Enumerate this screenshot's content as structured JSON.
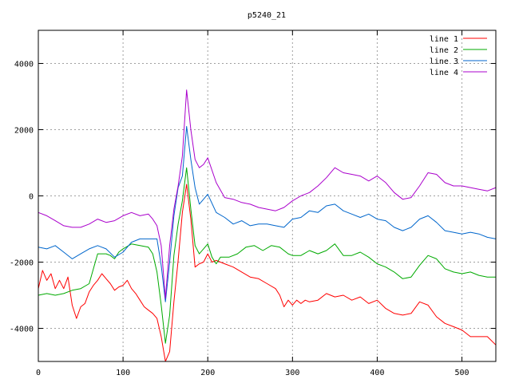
{
  "chart_data": {
    "type": "line",
    "title": "p5240_21",
    "xlabel": "",
    "ylabel": "",
    "xlim": [
      0,
      540
    ],
    "ylim": [
      -5000,
      5000
    ],
    "xticks": [
      0,
      100,
      200,
      300,
      400,
      500
    ],
    "yticks": [
      -4000,
      -2000,
      0,
      2000,
      4000
    ],
    "grid": true,
    "legend_position": "top-right",
    "series": [
      {
        "name": "line 1",
        "color": "#ff0000",
        "points": [
          [
            0,
            -2800
          ],
          [
            5,
            -2250
          ],
          [
            10,
            -2550
          ],
          [
            15,
            -2350
          ],
          [
            20,
            -2800
          ],
          [
            25,
            -2550
          ],
          [
            30,
            -2800
          ],
          [
            35,
            -2450
          ],
          [
            40,
            -3300
          ],
          [
            45,
            -3700
          ],
          [
            50,
            -3350
          ],
          [
            55,
            -3250
          ],
          [
            60,
            -2900
          ],
          [
            65,
            -2700
          ],
          [
            70,
            -2550
          ],
          [
            75,
            -2350
          ],
          [
            80,
            -2500
          ],
          [
            85,
            -2650
          ],
          [
            90,
            -2850
          ],
          [
            95,
            -2750
          ],
          [
            100,
            -2700
          ],
          [
            105,
            -2550
          ],
          [
            110,
            -2800
          ],
          [
            115,
            -2950
          ],
          [
            120,
            -3150
          ],
          [
            125,
            -3350
          ],
          [
            130,
            -3450
          ],
          [
            135,
            -3550
          ],
          [
            140,
            -3700
          ],
          [
            145,
            -4250
          ],
          [
            150,
            -5000
          ],
          [
            155,
            -4700
          ],
          [
            160,
            -3200
          ],
          [
            165,
            -1950
          ],
          [
            170,
            -500
          ],
          [
            175,
            350
          ],
          [
            180,
            -700
          ],
          [
            185,
            -2150
          ],
          [
            190,
            -2050
          ],
          [
            195,
            -2000
          ],
          [
            200,
            -1750
          ],
          [
            205,
            -2000
          ],
          [
            210,
            -1950
          ],
          [
            215,
            -2000
          ],
          [
            220,
            -2050
          ],
          [
            230,
            -2150
          ],
          [
            240,
            -2300
          ],
          [
            250,
            -2450
          ],
          [
            260,
            -2500
          ],
          [
            270,
            -2650
          ],
          [
            280,
            -2800
          ],
          [
            285,
            -3000
          ],
          [
            290,
            -3350
          ],
          [
            295,
            -3150
          ],
          [
            300,
            -3300
          ],
          [
            305,
            -3150
          ],
          [
            310,
            -3250
          ],
          [
            315,
            -3150
          ],
          [
            320,
            -3200
          ],
          [
            330,
            -3150
          ],
          [
            340,
            -2950
          ],
          [
            350,
            -3050
          ],
          [
            360,
            -3000
          ],
          [
            370,
            -3150
          ],
          [
            380,
            -3050
          ],
          [
            390,
            -3250
          ],
          [
            400,
            -3150
          ],
          [
            410,
            -3400
          ],
          [
            420,
            -3550
          ],
          [
            430,
            -3600
          ],
          [
            440,
            -3550
          ],
          [
            450,
            -3200
          ],
          [
            460,
            -3300
          ],
          [
            470,
            -3650
          ],
          [
            480,
            -3850
          ],
          [
            490,
            -3950
          ],
          [
            500,
            -4050
          ],
          [
            510,
            -4250
          ],
          [
            520,
            -4250
          ],
          [
            530,
            -4250
          ],
          [
            540,
            -4500
          ]
        ]
      },
      {
        "name": "line 2",
        "color": "#00aa00",
        "points": [
          [
            0,
            -3000
          ],
          [
            10,
            -2950
          ],
          [
            20,
            -3000
          ],
          [
            30,
            -2950
          ],
          [
            40,
            -2850
          ],
          [
            50,
            -2800
          ],
          [
            60,
            -2650
          ],
          [
            65,
            -2200
          ],
          [
            70,
            -1750
          ],
          [
            75,
            -1750
          ],
          [
            80,
            -1750
          ],
          [
            85,
            -1800
          ],
          [
            90,
            -1900
          ],
          [
            95,
            -1700
          ],
          [
            100,
            -1600
          ],
          [
            110,
            -1450
          ],
          [
            120,
            -1500
          ],
          [
            130,
            -1550
          ],
          [
            135,
            -1750
          ],
          [
            140,
            -2300
          ],
          [
            145,
            -3300
          ],
          [
            150,
            -4450
          ],
          [
            155,
            -3600
          ],
          [
            160,
            -1800
          ],
          [
            165,
            -850
          ],
          [
            170,
            -150
          ],
          [
            175,
            850
          ],
          [
            180,
            -400
          ],
          [
            185,
            -1500
          ],
          [
            190,
            -1750
          ],
          [
            195,
            -1600
          ],
          [
            200,
            -1450
          ],
          [
            205,
            -1850
          ],
          [
            210,
            -2050
          ],
          [
            215,
            -1850
          ],
          [
            225,
            -1850
          ],
          [
            235,
            -1750
          ],
          [
            245,
            -1550
          ],
          [
            255,
            -1500
          ],
          [
            265,
            -1650
          ],
          [
            275,
            -1500
          ],
          [
            285,
            -1550
          ],
          [
            295,
            -1750
          ],
          [
            300,
            -1800
          ],
          [
            310,
            -1800
          ],
          [
            320,
            -1650
          ],
          [
            330,
            -1750
          ],
          [
            340,
            -1650
          ],
          [
            350,
            -1450
          ],
          [
            360,
            -1800
          ],
          [
            370,
            -1800
          ],
          [
            380,
            -1700
          ],
          [
            390,
            -1850
          ],
          [
            400,
            -2050
          ],
          [
            410,
            -2150
          ],
          [
            420,
            -2300
          ],
          [
            430,
            -2500
          ],
          [
            440,
            -2450
          ],
          [
            450,
            -2100
          ],
          [
            460,
            -1800
          ],
          [
            470,
            -1900
          ],
          [
            480,
            -2200
          ],
          [
            490,
            -2300
          ],
          [
            500,
            -2350
          ],
          [
            510,
            -2300
          ],
          [
            520,
            -2400
          ],
          [
            530,
            -2450
          ],
          [
            540,
            -2450
          ]
        ]
      },
      {
        "name": "line 3",
        "color": "#0066cc",
        "points": [
          [
            0,
            -1550
          ],
          [
            10,
            -1600
          ],
          [
            20,
            -1500
          ],
          [
            30,
            -1700
          ],
          [
            40,
            -1900
          ],
          [
            50,
            -1750
          ],
          [
            60,
            -1600
          ],
          [
            70,
            -1500
          ],
          [
            80,
            -1600
          ],
          [
            90,
            -1850
          ],
          [
            100,
            -1700
          ],
          [
            110,
            -1400
          ],
          [
            120,
            -1300
          ],
          [
            130,
            -1300
          ],
          [
            140,
            -1300
          ],
          [
            145,
            -2100
          ],
          [
            150,
            -3200
          ],
          [
            155,
            -2000
          ],
          [
            160,
            -600
          ],
          [
            165,
            250
          ],
          [
            170,
            600
          ],
          [
            175,
            2100
          ],
          [
            180,
            1100
          ],
          [
            185,
            250
          ],
          [
            190,
            -250
          ],
          [
            195,
            -100
          ],
          [
            200,
            50
          ],
          [
            210,
            -500
          ],
          [
            220,
            -650
          ],
          [
            230,
            -850
          ],
          [
            240,
            -750
          ],
          [
            250,
            -900
          ],
          [
            260,
            -850
          ],
          [
            270,
            -850
          ],
          [
            280,
            -900
          ],
          [
            290,
            -950
          ],
          [
            300,
            -700
          ],
          [
            310,
            -650
          ],
          [
            320,
            -450
          ],
          [
            330,
            -500
          ],
          [
            340,
            -300
          ],
          [
            350,
            -250
          ],
          [
            360,
            -450
          ],
          [
            370,
            -550
          ],
          [
            380,
            -650
          ],
          [
            390,
            -550
          ],
          [
            400,
            -700
          ],
          [
            410,
            -750
          ],
          [
            420,
            -950
          ],
          [
            430,
            -1050
          ],
          [
            440,
            -950
          ],
          [
            450,
            -700
          ],
          [
            460,
            -600
          ],
          [
            470,
            -800
          ],
          [
            480,
            -1050
          ],
          [
            490,
            -1100
          ],
          [
            500,
            -1150
          ],
          [
            510,
            -1100
          ],
          [
            520,
            -1150
          ],
          [
            530,
            -1250
          ],
          [
            540,
            -1300
          ]
        ]
      },
      {
        "name": "line 4",
        "color": "#aa00cc",
        "points": [
          [
            0,
            -500
          ],
          [
            10,
            -600
          ],
          [
            20,
            -750
          ],
          [
            30,
            -900
          ],
          [
            40,
            -950
          ],
          [
            50,
            -950
          ],
          [
            60,
            -850
          ],
          [
            70,
            -700
          ],
          [
            80,
            -800
          ],
          [
            90,
            -750
          ],
          [
            100,
            -600
          ],
          [
            110,
            -500
          ],
          [
            120,
            -600
          ],
          [
            130,
            -550
          ],
          [
            135,
            -700
          ],
          [
            140,
            -900
          ],
          [
            145,
            -1500
          ],
          [
            150,
            -3100
          ],
          [
            155,
            -1500
          ],
          [
            160,
            -400
          ],
          [
            165,
            300
          ],
          [
            170,
            1200
          ],
          [
            175,
            3200
          ],
          [
            180,
            2000
          ],
          [
            185,
            1100
          ],
          [
            190,
            850
          ],
          [
            195,
            950
          ],
          [
            200,
            1150
          ],
          [
            210,
            400
          ],
          [
            220,
            -50
          ],
          [
            230,
            -100
          ],
          [
            240,
            -200
          ],
          [
            250,
            -250
          ],
          [
            260,
            -350
          ],
          [
            270,
            -400
          ],
          [
            280,
            -450
          ],
          [
            290,
            -350
          ],
          [
            300,
            -150
          ],
          [
            310,
            0
          ],
          [
            320,
            100
          ],
          [
            330,
            300
          ],
          [
            340,
            550
          ],
          [
            350,
            850
          ],
          [
            360,
            700
          ],
          [
            370,
            650
          ],
          [
            380,
            600
          ],
          [
            390,
            450
          ],
          [
            400,
            600
          ],
          [
            410,
            400
          ],
          [
            420,
            100
          ],
          [
            430,
            -100
          ],
          [
            440,
            -50
          ],
          [
            450,
            300
          ],
          [
            460,
            700
          ],
          [
            470,
            650
          ],
          [
            480,
            400
          ],
          [
            490,
            300
          ],
          [
            500,
            300
          ],
          [
            510,
            250
          ],
          [
            520,
            200
          ],
          [
            530,
            150
          ],
          [
            540,
            250
          ]
        ]
      }
    ]
  }
}
